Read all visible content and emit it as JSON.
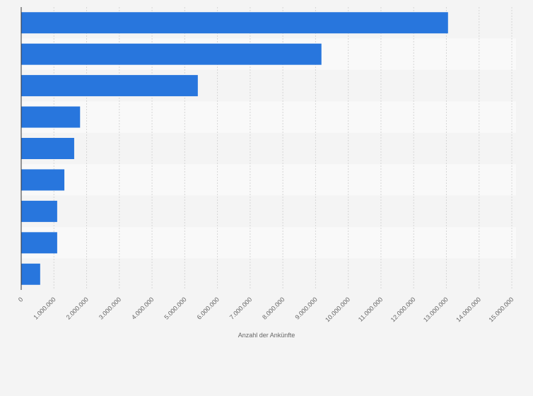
{
  "chart_data": {
    "type": "bar",
    "orientation": "horizontal",
    "categories": [
      "",
      "",
      "",
      "",
      "",
      "",
      "",
      "",
      ""
    ],
    "values": [
      13050000,
      9180000,
      5400000,
      1800000,
      1620000,
      1320000,
      1100000,
      1100000,
      580000
    ],
    "title": "",
    "xlabel": "Anzahl der Ankünfte",
    "ylabel": "",
    "xlim": [
      0,
      15000000
    ],
    "x_ticks": [
      0,
      1000000,
      2000000,
      3000000,
      4000000,
      5000000,
      6000000,
      7000000,
      8000000,
      9000000,
      10000000,
      11000000,
      12000000,
      13000000,
      14000000,
      15000000
    ],
    "x_tick_labels": [
      "0",
      "1.000.000",
      "2.000.000",
      "3.000.000",
      "4.000.000",
      "5.000.000",
      "6.000.000",
      "7.000.000",
      "8.000.000",
      "9.000.000",
      "10.000.000",
      "11.000.000",
      "12.000.000",
      "13.000.000",
      "14.000.000",
      "15.000.000"
    ],
    "grid": "vertical dashed",
    "legend": "none",
    "colors": {
      "bar": "#2876dd",
      "band_light": "#f9f9f9",
      "band_dark": "#f4f4f4",
      "grid": "#d6d6d6",
      "axis": "#333333",
      "label": "#666666"
    }
  }
}
